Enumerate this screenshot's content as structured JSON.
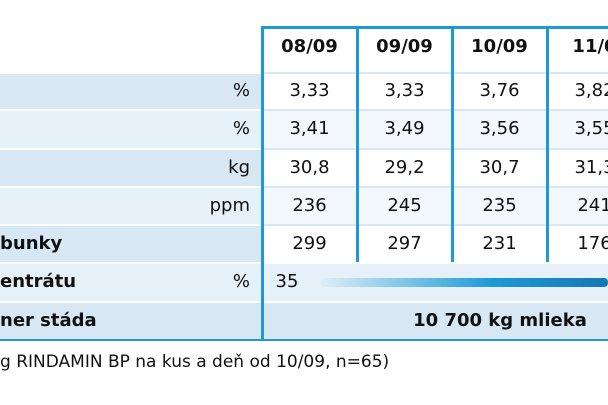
{
  "header": {
    "columns": [
      "08/09",
      "09/09",
      "10/09",
      "11/0"
    ]
  },
  "rows": [
    {
      "unit": "%",
      "values": [
        "3,33",
        "3,33",
        "3,76",
        "3,82"
      ]
    },
    {
      "unit": "%",
      "values": [
        "3,41",
        "3,49",
        "3,56",
        "3,55"
      ]
    },
    {
      "unit": "kg",
      "values": [
        "30,8",
        "29,2",
        "30,7",
        "31,3"
      ]
    },
    {
      "unit": "ppm",
      "values": [
        "236",
        "245",
        "235",
        "241"
      ]
    },
    {
      "label": "bunky",
      "values": [
        "299",
        "297",
        "231",
        "176"
      ]
    },
    {
      "label": "entrátu",
      "unit": "%",
      "values": [
        "35"
      ]
    },
    {
      "label": "ner stáda",
      "merged": "10 700 kg mlieka"
    }
  ],
  "footnote": "g RINDAMIN BP na kus a deň od 10/09, n=65)"
}
